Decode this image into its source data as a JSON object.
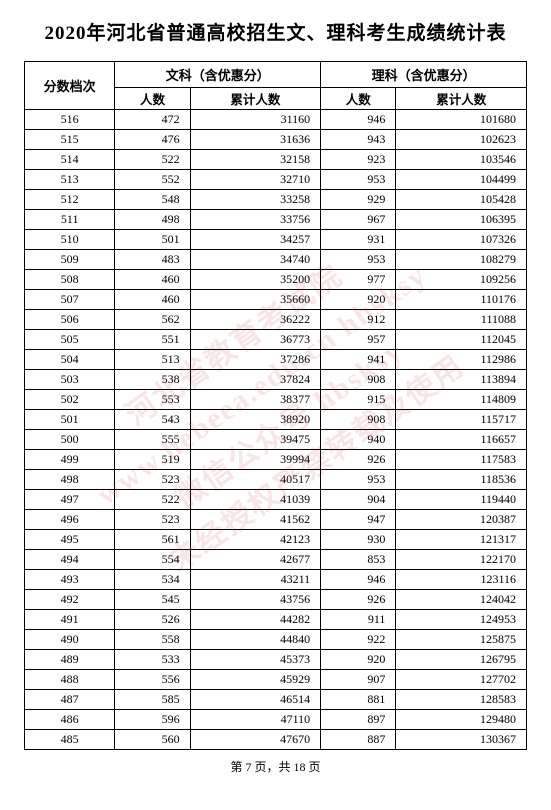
{
  "title": "2020年河北省普通高校招生文、理科考生成绩统计表",
  "headers": {
    "score_col": "分数档次",
    "liberal_group": "文科（含优惠分）",
    "science_group": "理科（含优惠分）",
    "count": "人数",
    "cumulative": "累计人数"
  },
  "footer": {
    "page_current": 7,
    "page_total": 18,
    "text": "第 7 页，共 18 页"
  },
  "watermark": {
    "line1": "河北省教育考试院",
    "line2": "www.hebeea.edu.cn hbsksy",
    "line3": "微信公众号 hbsksy",
    "line4": "未经授权严禁转载及使用"
  },
  "table_style": {
    "border_color": "#000000",
    "background_color": "#ffffff",
    "text_color": "#000000",
    "font_size_body": 12,
    "font_size_title": 19,
    "watermark_color": "rgba(200,40,40,0.12)",
    "watermark_rotate_deg": -35
  },
  "columns": [
    "score",
    "liberal_count",
    "liberal_cumulative",
    "science_count",
    "science_cumulative"
  ],
  "rows": [
    [
      516,
      472,
      31160,
      946,
      101680
    ],
    [
      515,
      476,
      31636,
      943,
      102623
    ],
    [
      514,
      522,
      32158,
      923,
      103546
    ],
    [
      513,
      552,
      32710,
      953,
      104499
    ],
    [
      512,
      548,
      33258,
      929,
      105428
    ],
    [
      511,
      498,
      33756,
      967,
      106395
    ],
    [
      510,
      501,
      34257,
      931,
      107326
    ],
    [
      509,
      483,
      34740,
      953,
      108279
    ],
    [
      508,
      460,
      35200,
      977,
      109256
    ],
    [
      507,
      460,
      35660,
      920,
      110176
    ],
    [
      506,
      562,
      36222,
      912,
      111088
    ],
    [
      505,
      551,
      36773,
      957,
      112045
    ],
    [
      504,
      513,
      37286,
      941,
      112986
    ],
    [
      503,
      538,
      37824,
      908,
      113894
    ],
    [
      502,
      553,
      38377,
      915,
      114809
    ],
    [
      501,
      543,
      38920,
      908,
      115717
    ],
    [
      500,
      555,
      39475,
      940,
      116657
    ],
    [
      499,
      519,
      39994,
      926,
      117583
    ],
    [
      498,
      523,
      40517,
      953,
      118536
    ],
    [
      497,
      522,
      41039,
      904,
      119440
    ],
    [
      496,
      523,
      41562,
      947,
      120387
    ],
    [
      495,
      561,
      42123,
      930,
      121317
    ],
    [
      494,
      554,
      42677,
      853,
      122170
    ],
    [
      493,
      534,
      43211,
      946,
      123116
    ],
    [
      492,
      545,
      43756,
      926,
      124042
    ],
    [
      491,
      526,
      44282,
      911,
      124953
    ],
    [
      490,
      558,
      44840,
      922,
      125875
    ],
    [
      489,
      533,
      45373,
      920,
      126795
    ],
    [
      488,
      556,
      45929,
      907,
      127702
    ],
    [
      487,
      585,
      46514,
      881,
      128583
    ],
    [
      486,
      596,
      47110,
      897,
      129480
    ],
    [
      485,
      560,
      47670,
      887,
      130367
    ]
  ]
}
